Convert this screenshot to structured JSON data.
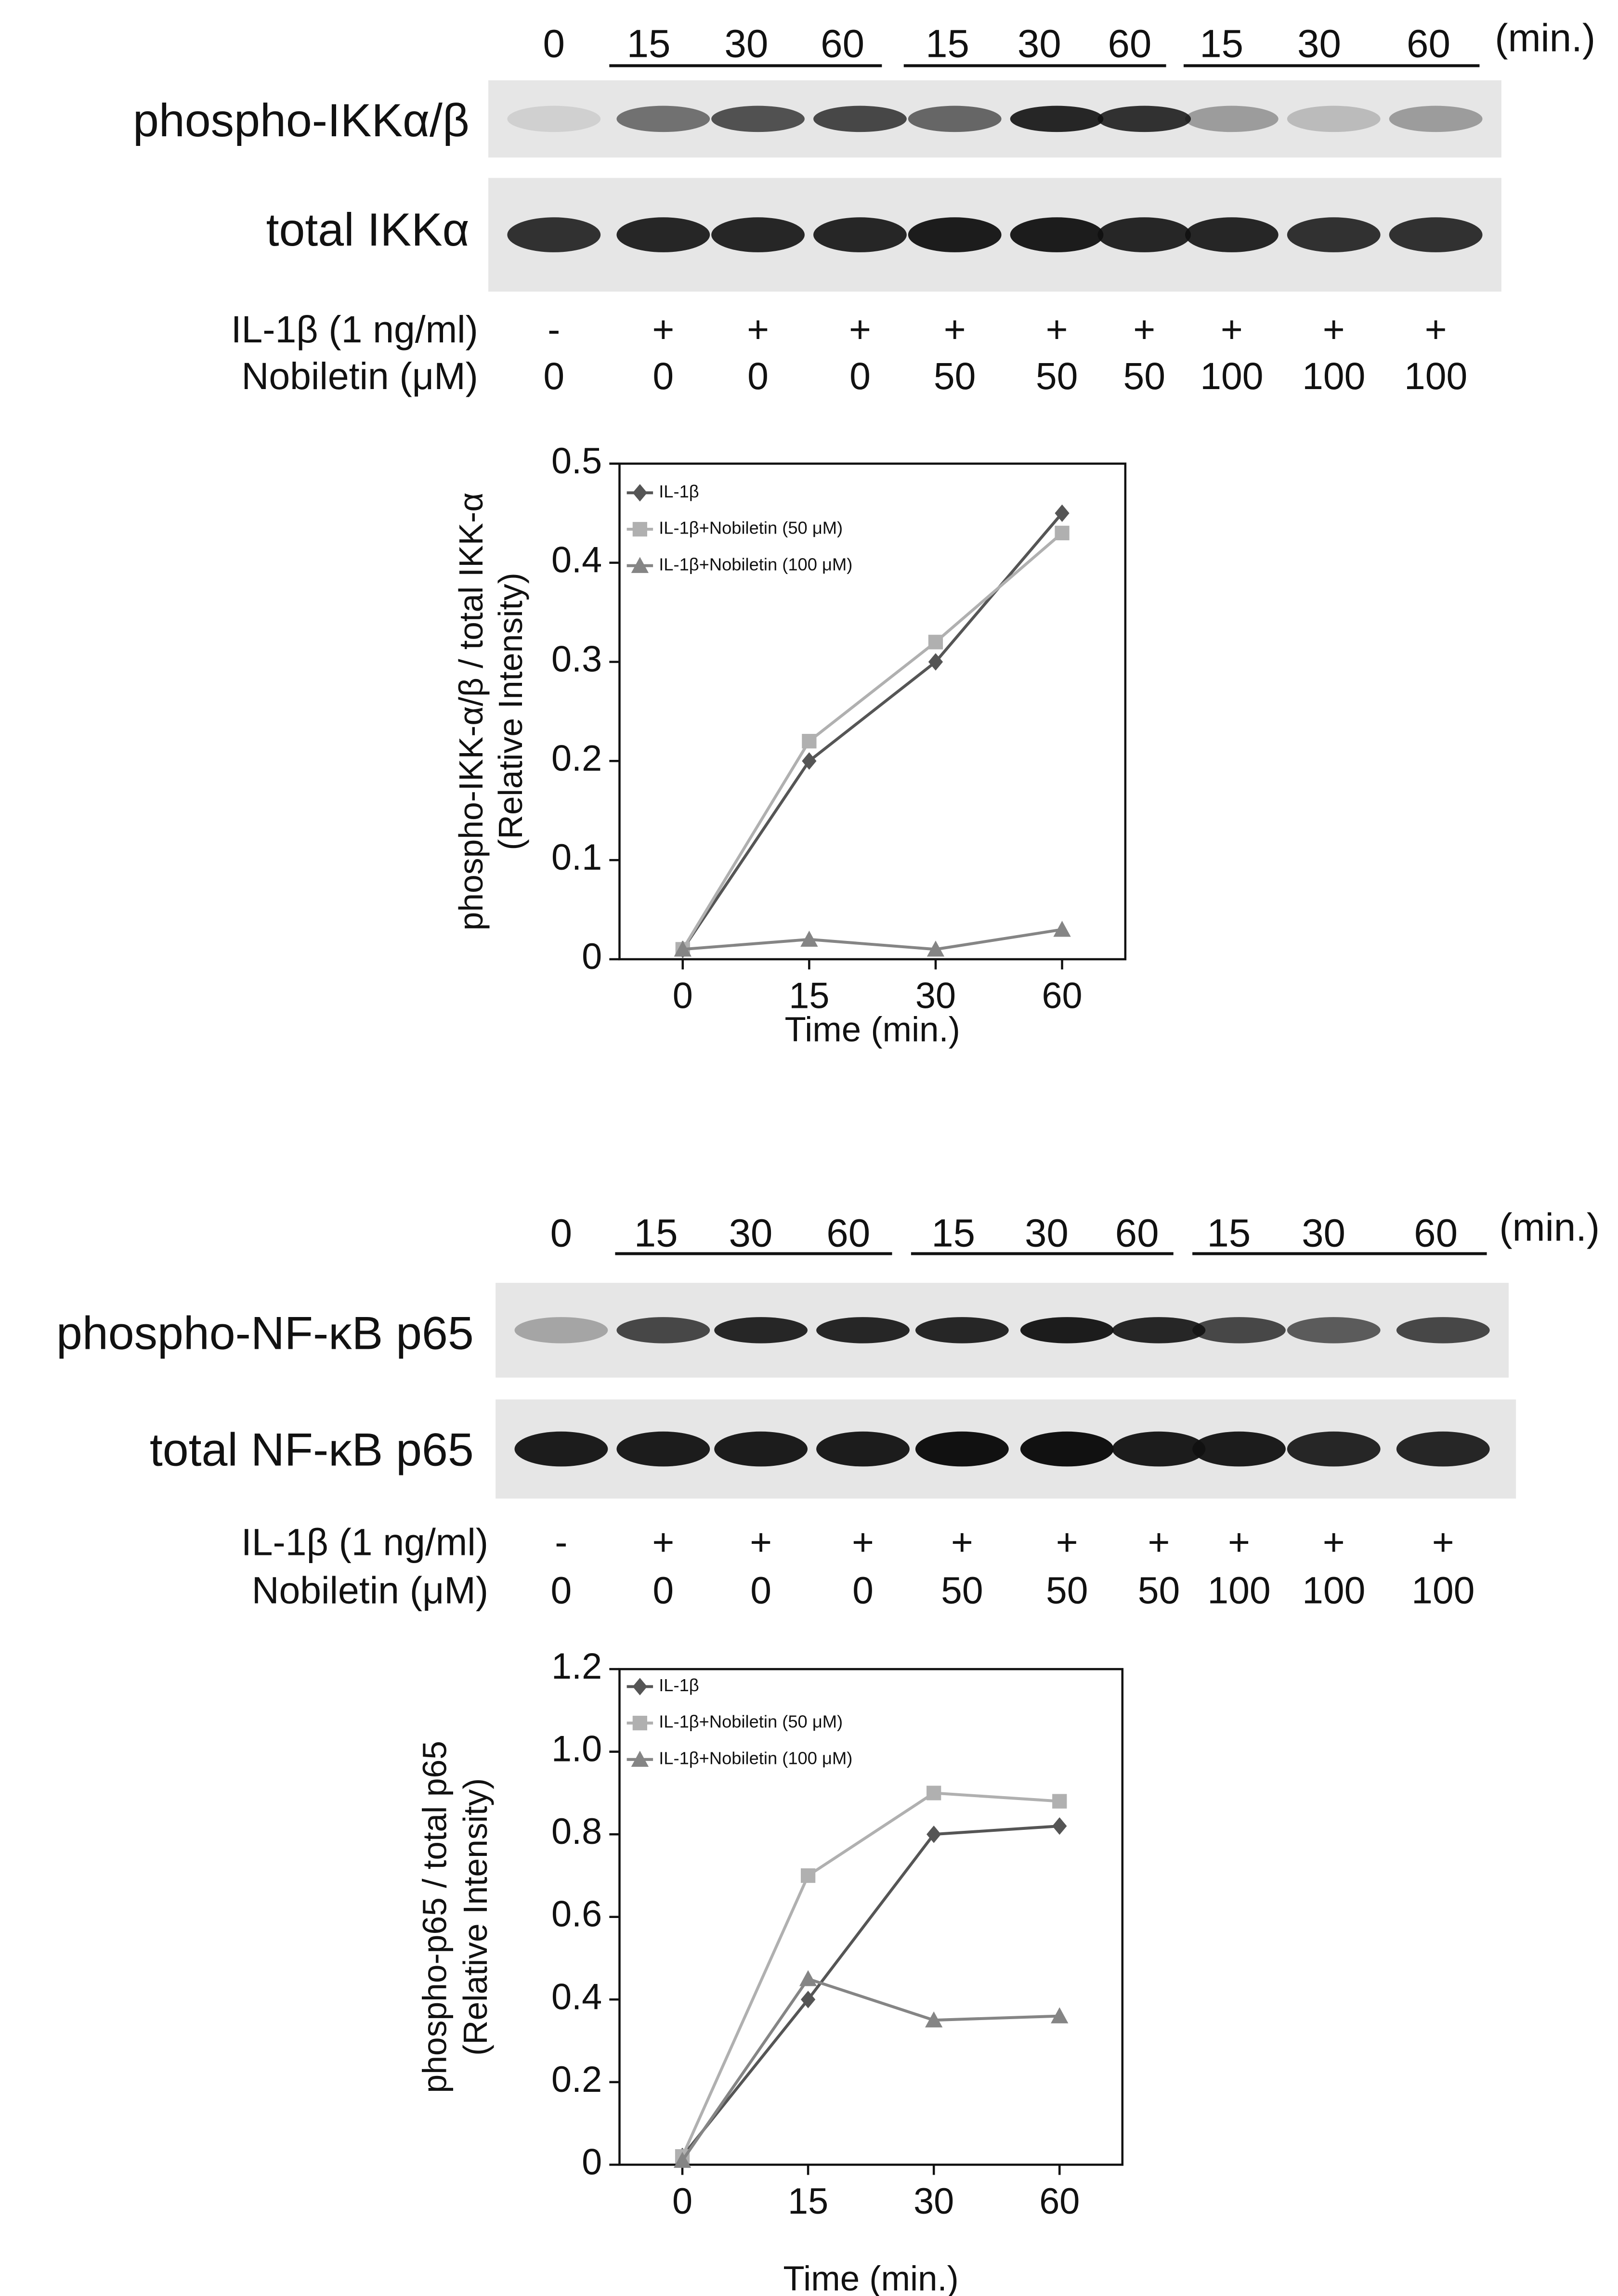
{
  "blots": [
    {
      "time_labels": [
        0,
        15,
        30,
        60,
        15,
        30,
        60,
        15,
        30,
        60
      ],
      "time_unit": "(min.)",
      "rows": [
        "phospho-IKKα/β",
        "total IKKα"
      ],
      "treatments": [
        {
          "label": "IL-1β (1 ng/ml)",
          "values": [
            "-",
            "+",
            "+",
            "+",
            "+",
            "+",
            "+",
            "+",
            "+",
            "+"
          ]
        },
        {
          "label": "Nobiletin (μM)",
          "values": [
            0,
            0,
            0,
            0,
            50,
            50,
            50,
            100,
            100,
            100
          ]
        }
      ]
    },
    {
      "time_labels": [
        0,
        15,
        30,
        60,
        15,
        30,
        60,
        15,
        30,
        60
      ],
      "time_unit": "(min.)",
      "rows": [
        "phospho-NF-κB p65",
        "total NF-κB p65"
      ],
      "treatments": [
        {
          "label": "IL-1β (1 ng/ml)",
          "values": [
            "-",
            "+",
            "+",
            "+",
            "+",
            "+",
            "+",
            "+",
            "+",
            "+"
          ]
        },
        {
          "label": "Nobiletin (μM)",
          "values": [
            0,
            0,
            0,
            0,
            50,
            50,
            50,
            100,
            100,
            100
          ]
        }
      ]
    }
  ],
  "chart_data": [
    {
      "type": "line",
      "ylabel": [
        "phospho-IKK-α/β / total IKK-α",
        "(Relative Intensity)"
      ],
      "xlabel": "Time (min.)",
      "categories": [
        "0",
        "15",
        "30",
        "60"
      ],
      "ylim": [
        0,
        0.5
      ],
      "yticks": [
        0,
        0.1,
        0.2,
        0.3,
        0.4,
        0.5
      ],
      "series": [
        {
          "name": "IL-1β",
          "color": "#555555",
          "marker": "diamond",
          "values": [
            0.01,
            0.2,
            0.3,
            0.45
          ]
        },
        {
          "name": "IL-1β+Nobiletin (50 μM)",
          "color": "#b0b0b0",
          "marker": "square",
          "values": [
            0.01,
            0.22,
            0.32,
            0.43
          ]
        },
        {
          "name": "IL-1β+Nobiletin (100 μM)",
          "color": "#858585",
          "marker": "triangle",
          "values": [
            0.01,
            0.02,
            0.01,
            0.03
          ]
        }
      ]
    },
    {
      "type": "line",
      "ylabel": [
        "phospho-p65 / total p65",
        "(Relative Intensity)"
      ],
      "xlabel": "Time (min.)",
      "categories": [
        "0",
        "15",
        "30",
        "60"
      ],
      "ylim": [
        0,
        1.2
      ],
      "yticks": [
        0,
        0.2,
        0.4,
        0.6,
        0.8,
        {
          "value": 1,
          "label": "1.0"
        },
        1.2
      ],
      "series": [
        {
          "name": "IL-1β",
          "color": "#555555",
          "marker": "diamond",
          "values": [
            0.02,
            0.4,
            0.8,
            0.82
          ]
        },
        {
          "name": "IL-1β+Nobiletin (50 μM)",
          "color": "#b0b0b0",
          "marker": "square",
          "values": [
            0.02,
            0.7,
            0.9,
            0.88
          ]
        },
        {
          "name": "IL-1β+Nobiletin (100 μM)",
          "color": "#858585",
          "marker": "triangle",
          "values": [
            0.01,
            0.45,
            0.35,
            0.36
          ]
        }
      ]
    }
  ]
}
